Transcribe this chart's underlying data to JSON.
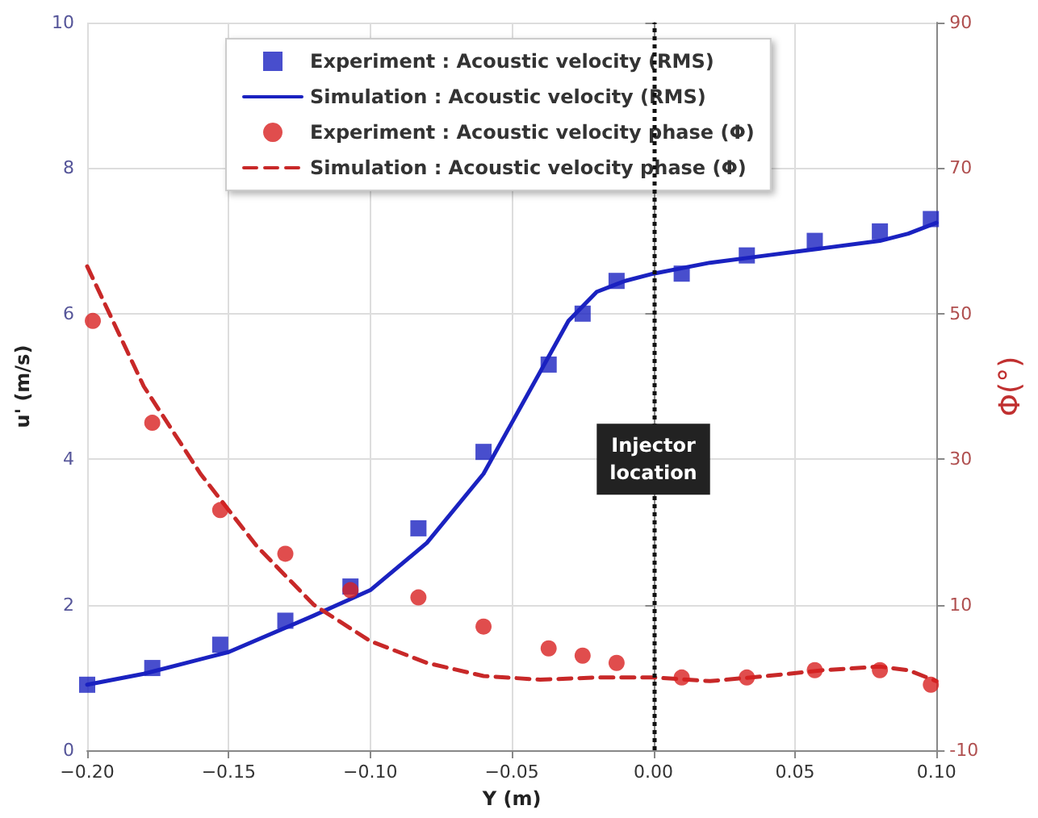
{
  "chart_data": {
    "type": "scatter",
    "xlabel": "Y (m)",
    "ylabel": "u' (m/s)",
    "y2label": "Φ(°)",
    "xlim": [
      -0.2,
      0.1
    ],
    "xticks": [
      {
        "value": -0.2,
        "label": "−0.20"
      },
      {
        "value": -0.15,
        "label": "−0.15"
      },
      {
        "value": -0.1,
        "label": "−0.10"
      },
      {
        "value": -0.05,
        "label": "−0.05"
      },
      {
        "value": 0,
        "label": "0.00"
      },
      {
        "value": 0.05,
        "label": "0.05"
      },
      {
        "value": 0.1,
        "label": "0.10"
      }
    ],
    "ylim": [
      0,
      10
    ],
    "yticks": [
      0,
      2,
      4,
      6,
      8,
      10
    ],
    "y2lim": [
      -10,
      90
    ],
    "y2ticks": [
      -10,
      10,
      30,
      50,
      70,
      90
    ],
    "grid": true,
    "legend": "top",
    "series": [
      {
        "name": "Experiment : Acoustic velocity (RMS)",
        "marker": "square",
        "color": "#1a22c0",
        "x": [
          -0.2,
          -0.177,
          -0.153,
          -0.13,
          -0.107,
          -0.083,
          -0.06,
          -0.037,
          -0.025,
          -0.013,
          0.01,
          0.033,
          0.057,
          0.08,
          0.098
        ],
        "values": [
          0.9,
          1.13,
          1.45,
          1.78,
          2.25,
          3.05,
          4.1,
          5.3,
          6.0,
          6.45,
          6.55,
          6.8,
          7.0,
          7.13,
          7.3
        ]
      },
      {
        "name": "Simulation : Acoustic velocity (RMS)",
        "type": "line",
        "marker": "none",
        "line_style": "solid",
        "color": "#1a22c0",
        "x": [
          -0.2,
          -0.18,
          -0.15,
          -0.12,
          -0.1,
          -0.08,
          -0.06,
          -0.05,
          -0.04,
          -0.03,
          -0.02,
          -0.01,
          0,
          0.02,
          0.04,
          0.06,
          0.08,
          0.09,
          0.1
        ],
        "values": [
          0.9,
          1.05,
          1.35,
          1.85,
          2.2,
          2.85,
          3.8,
          4.5,
          5.2,
          5.9,
          6.3,
          6.45,
          6.55,
          6.7,
          6.8,
          6.9,
          7.0,
          7.1,
          7.25
        ]
      },
      {
        "name": "Experiment : Acoustic velocity phase (Φ)",
        "marker": "circle",
        "axis": "y2",
        "color": "#d82020",
        "x": [
          -0.198,
          -0.177,
          -0.153,
          -0.13,
          -0.107,
          -0.083,
          -0.06,
          -0.037,
          -0.025,
          -0.013,
          0.01,
          0.033,
          0.057,
          0.08,
          0.098
        ],
        "values": [
          49,
          35,
          23,
          17,
          12,
          11,
          7,
          4,
          3,
          2,
          0,
          0,
          1,
          1,
          -1
        ]
      },
      {
        "name": "Simulation : Acoustic velocity phase (Φ)",
        "type": "line",
        "marker": "none",
        "line_style": "dashed",
        "axis": "y2",
        "color": "#c82828",
        "x": [
          -0.2,
          -0.18,
          -0.16,
          -0.14,
          -0.12,
          -0.1,
          -0.08,
          -0.06,
          -0.04,
          -0.02,
          0,
          0.02,
          0.04,
          0.06,
          0.08,
          0.09,
          0.1
        ],
        "values": [
          56.5,
          40,
          28,
          18,
          10,
          5,
          2,
          0.2,
          -0.3,
          0,
          0,
          -0.5,
          0.2,
          1,
          1.5,
          1,
          -0.5
        ]
      }
    ],
    "ref_lines": [
      {
        "axis": "x",
        "value": 0,
        "label": "Injector location",
        "color": "#111111",
        "line_style": "dotted"
      }
    ]
  }
}
